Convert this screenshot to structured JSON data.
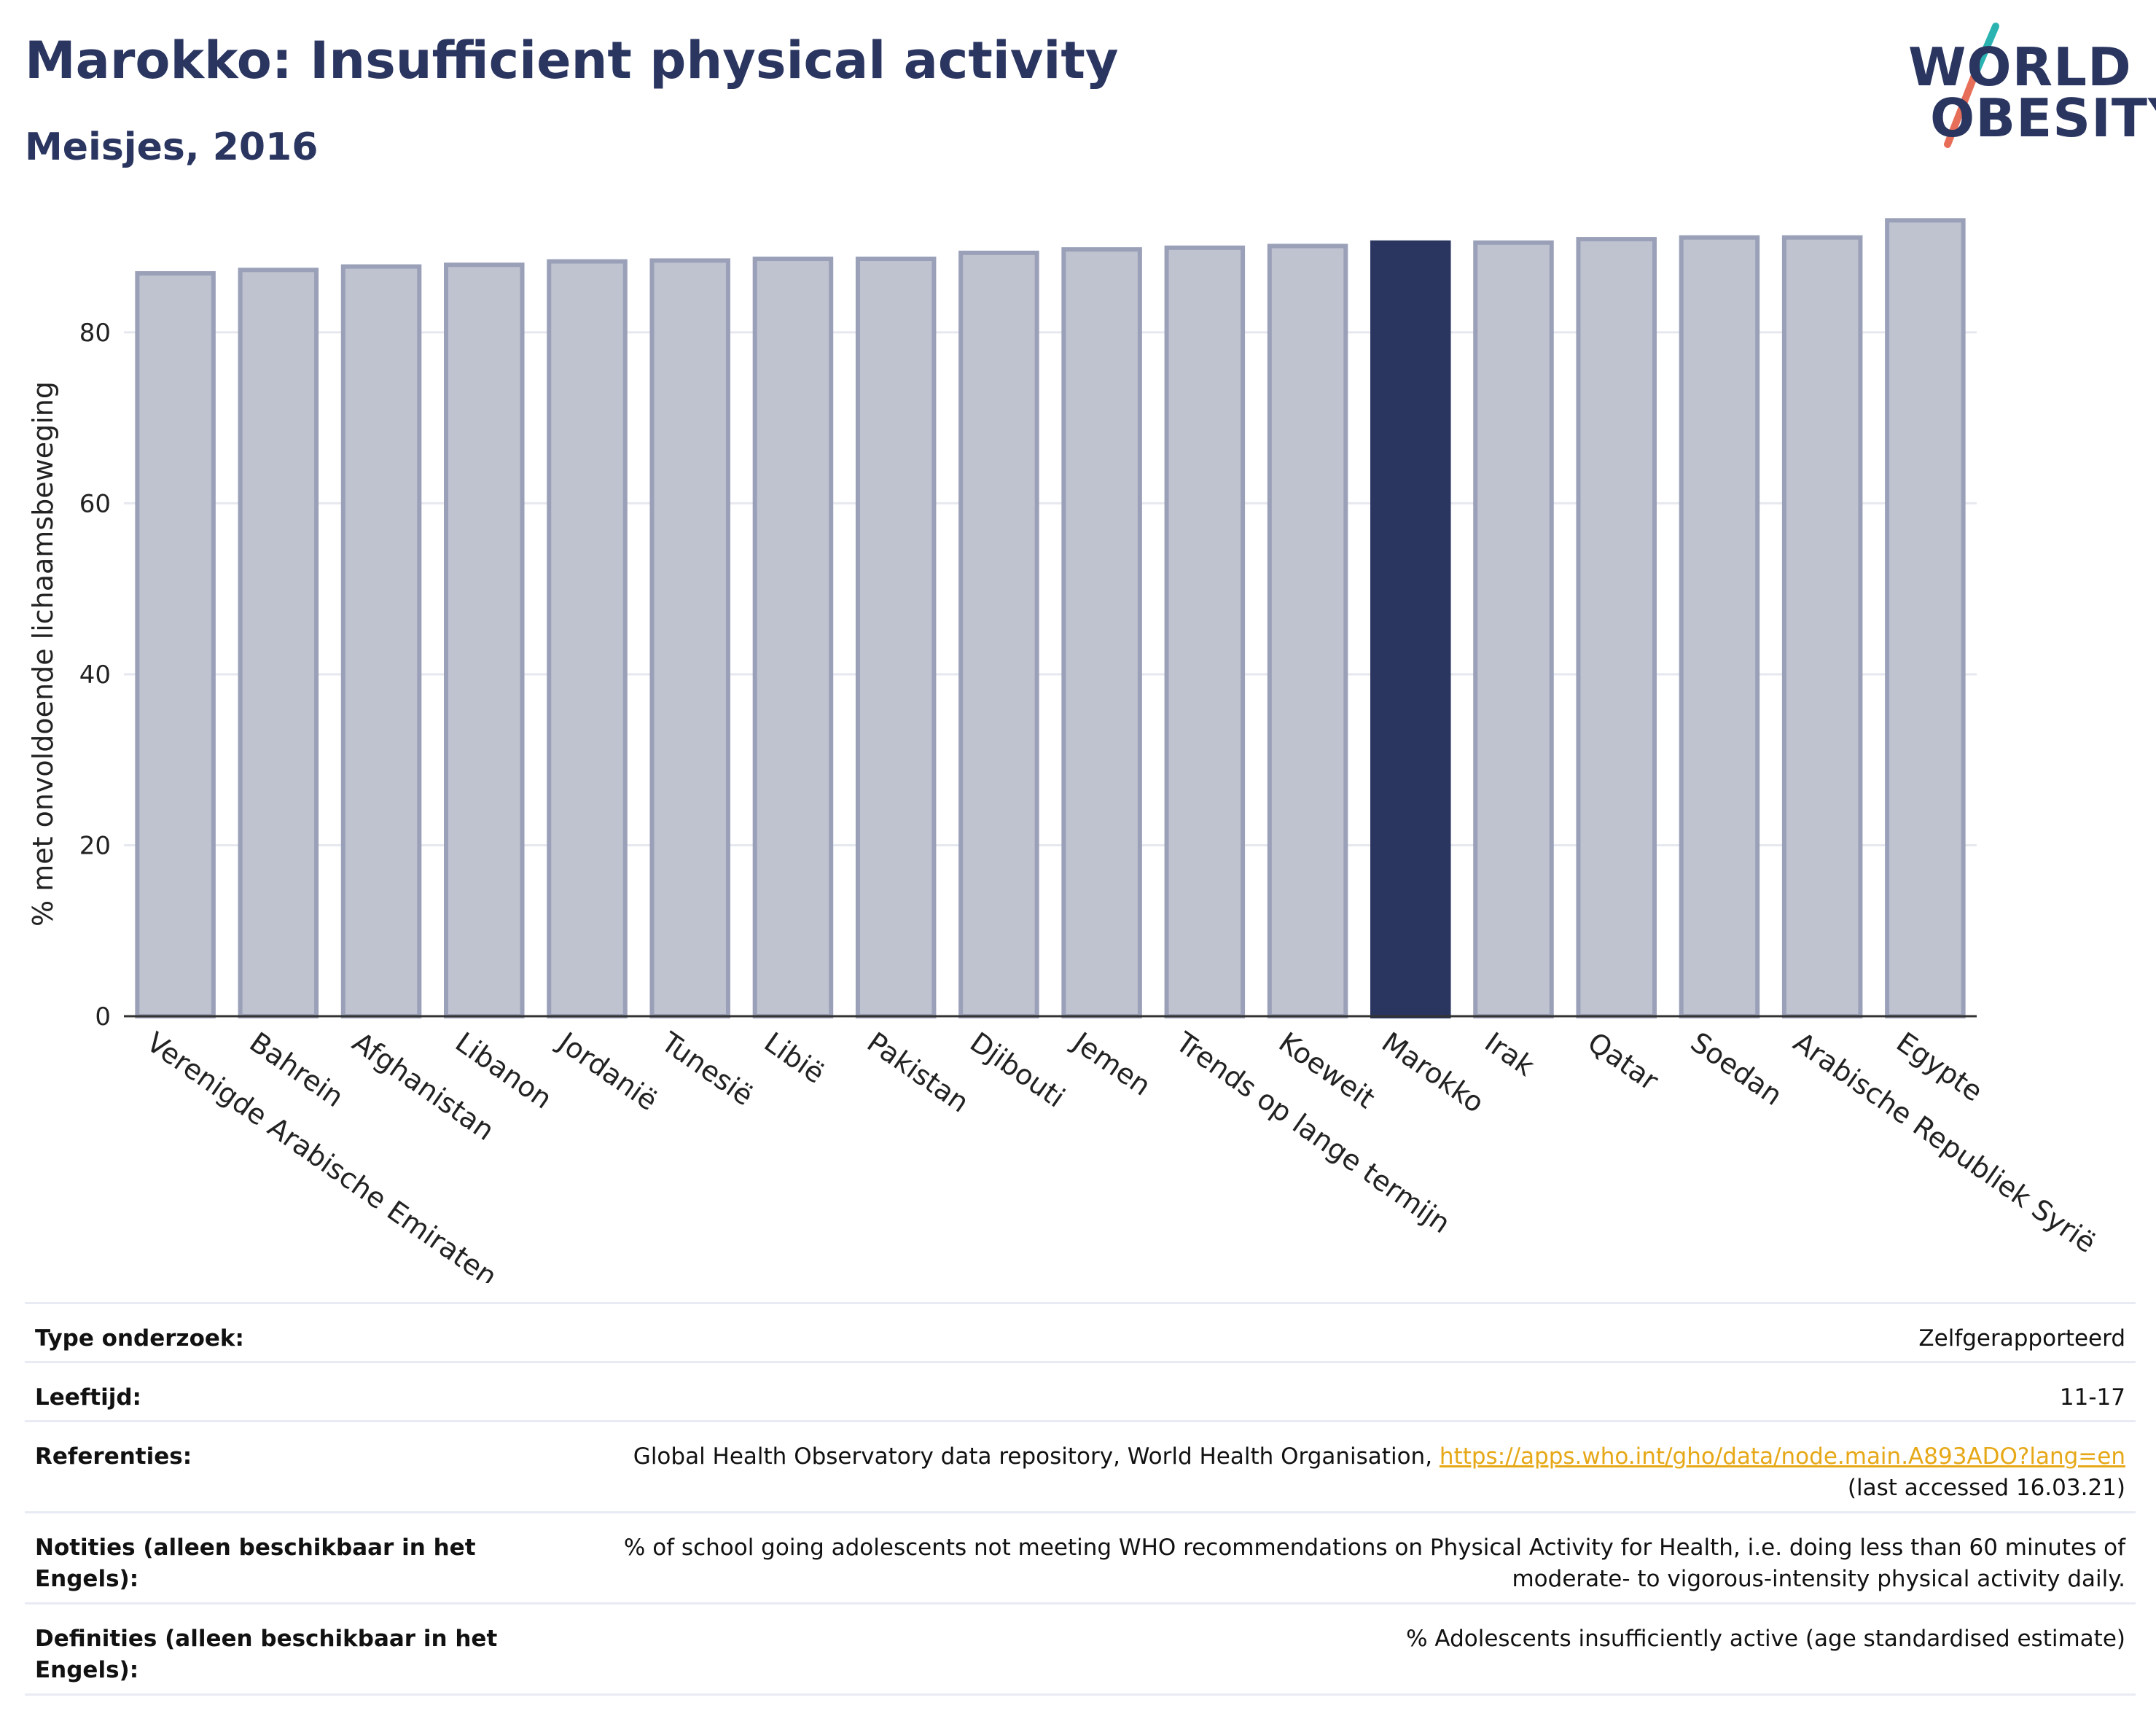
{
  "header": {
    "title": "Marokko: Insufficient physical activity",
    "subtitle": "Meisjes, 2016"
  },
  "logo": {
    "line1": "WORLD",
    "line2": "OBESITY",
    "icon": "world-obesity-logo",
    "colors": {
      "text": "#2a3560",
      "slash_teal": "#2bb3b1",
      "slash_coral": "#e76f5a"
    }
  },
  "colors": {
    "bar_default": "#bfc3d0",
    "bar_default_stroke": "#9aa0b8",
    "bar_highlight": "#2a3560",
    "axis": "#333333",
    "grid": "#e6e8ef"
  },
  "chart_data": {
    "type": "bar",
    "title": "Marokko: Insufficient physical activity",
    "subtitle": "Meisjes, 2016",
    "ylabel": "% met onvoldoende lichaamsbeweging",
    "xlabel": "",
    "ylim": [
      0,
      95
    ],
    "yticks": [
      0,
      20,
      40,
      60,
      80
    ],
    "grid": true,
    "highlight": "Marokko",
    "categories": [
      "Verenigde Arabische Emiraten",
      "Bahrein",
      "Afghanistan",
      "Libanon",
      "Jordanië",
      "Tunesië",
      "Libië",
      "Pakistan",
      "Djibouti",
      "Jemen",
      "Trends op lange termijn",
      "Koeweit",
      "Marokko",
      "Irak",
      "Qatar",
      "Soedan",
      "Arabische Republiek Syrië",
      "Egypte"
    ],
    "values": [
      86.9,
      87.3,
      87.7,
      87.9,
      88.3,
      88.4,
      88.6,
      88.6,
      89.3,
      89.7,
      89.9,
      90.1,
      90.5,
      90.5,
      90.9,
      91.1,
      91.1,
      93.1
    ]
  },
  "info": {
    "rows": [
      {
        "label": "Type onderzoek:",
        "value": "Zelfgerapporteerd"
      },
      {
        "label": "Leeftijd:",
        "value": "11-17"
      },
      {
        "label": "Referenties:",
        "value": "Global Health Observatory data repository, World Health Organisation, ",
        "link": "https://apps.who.int/gho/data/node.main.A893ADO?lang=en",
        "value_after": "(last accessed 16.03.21)"
      },
      {
        "label": "Notities (alleen beschikbaar in het Engels):",
        "value": "% of school going adolescents not meeting WHO recommendations on Physical Activity for Health, i.e. doing less than 60 minutes of moderate- to vigorous-intensity physical activity daily."
      },
      {
        "label": "Definities (alleen beschikbaar in het Engels):",
        "value": "% Adolescents insufficiently active (age standardised estimate)"
      }
    ]
  }
}
